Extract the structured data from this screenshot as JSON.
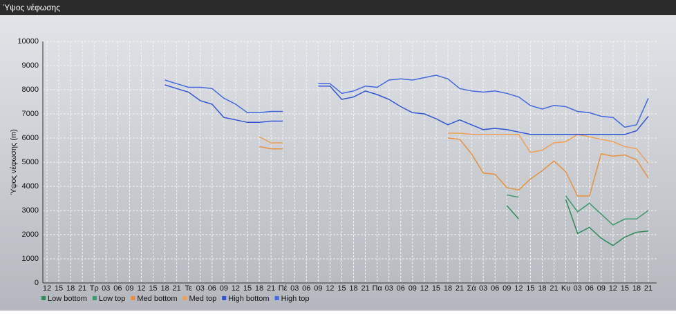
{
  "chart_data": {
    "type": "line",
    "title": "Ύψος νέφωσης",
    "ylabel": "Ύψος νέφωσης (m)",
    "categories": [
      "12",
      "15",
      "18",
      "21",
      "Τρ",
      "03",
      "06",
      "09",
      "12",
      "15",
      "18",
      "21",
      "Τε",
      "03",
      "06",
      "09",
      "12",
      "15",
      "18",
      "21",
      "Πέ",
      "03",
      "06",
      "09",
      "12",
      "15",
      "18",
      "21",
      "Πα",
      "03",
      "06",
      "09",
      "12",
      "15",
      "18",
      "21",
      "Σά",
      "03",
      "06",
      "09",
      "12",
      "15",
      "18",
      "21",
      "Κυ",
      "03",
      "06",
      "09",
      "12",
      "15",
      "18",
      "21"
    ],
    "ylim": [
      0,
      10000
    ],
    "yticks": [
      0,
      1000,
      2000,
      3000,
      4000,
      5000,
      6000,
      7000,
      8000,
      9000,
      10000
    ],
    "grid": true,
    "series": [
      {
        "name": "Low bottom",
        "color": "#2e8b57",
        "values": [
          null,
          null,
          null,
          null,
          null,
          null,
          null,
          null,
          null,
          null,
          null,
          null,
          null,
          null,
          null,
          null,
          null,
          null,
          null,
          null,
          null,
          null,
          null,
          null,
          null,
          null,
          null,
          null,
          null,
          null,
          null,
          null,
          null,
          null,
          null,
          null,
          null,
          null,
          null,
          3200,
          2650,
          null,
          null,
          null,
          3450,
          2050,
          2300,
          1850,
          1550,
          1900,
          2100,
          2150
        ]
      },
      {
        "name": "Low top",
        "color": "#3a9a6a",
        "values": [
          null,
          null,
          null,
          null,
          null,
          null,
          null,
          null,
          null,
          null,
          null,
          null,
          null,
          null,
          null,
          null,
          null,
          null,
          null,
          null,
          null,
          null,
          null,
          null,
          null,
          null,
          null,
          null,
          null,
          null,
          null,
          null,
          null,
          null,
          null,
          null,
          null,
          null,
          null,
          3650,
          3550,
          null,
          null,
          null,
          3600,
          2950,
          3300,
          2850,
          2400,
          2650,
          2650,
          3000
        ]
      },
      {
        "name": "Med bottom",
        "color": "#e8913a",
        "values": [
          null,
          null,
          null,
          null,
          null,
          null,
          null,
          null,
          null,
          null,
          null,
          null,
          null,
          null,
          null,
          null,
          null,
          null,
          5650,
          5550,
          5550,
          null,
          null,
          null,
          null,
          null,
          null,
          null,
          null,
          null,
          null,
          null,
          null,
          null,
          6000,
          5950,
          5350,
          4550,
          4500,
          3950,
          3850,
          4300,
          4650,
          5050,
          4600,
          3600,
          3600,
          5350,
          5250,
          5300,
          5100,
          4350
        ]
      },
      {
        "name": "Med top",
        "color": "#f0a050",
        "values": [
          null,
          null,
          null,
          null,
          null,
          null,
          null,
          null,
          null,
          null,
          null,
          null,
          null,
          null,
          null,
          null,
          null,
          null,
          6050,
          5800,
          5800,
          null,
          null,
          null,
          null,
          null,
          null,
          null,
          null,
          null,
          null,
          null,
          null,
          null,
          6200,
          6200,
          6150,
          6150,
          6150,
          6150,
          6150,
          5400,
          5500,
          5800,
          5850,
          6150,
          6050,
          5950,
          5850,
          5650,
          5550,
          4950
        ]
      },
      {
        "name": "High bottom",
        "color": "#2f55d4",
        "values": [
          null,
          null,
          null,
          null,
          null,
          null,
          null,
          null,
          null,
          null,
          8200,
          8050,
          7900,
          7550,
          7400,
          6850,
          6750,
          6650,
          6650,
          6700,
          6700,
          null,
          null,
          8150,
          8150,
          7600,
          7700,
          7950,
          7800,
          7600,
          7300,
          7050,
          7000,
          6800,
          6550,
          6750,
          6550,
          6350,
          6400,
          6350,
          6250,
          6150,
          6150,
          6150,
          6150,
          6150,
          6150,
          6150,
          6150,
          6150,
          6300,
          6900
        ]
      },
      {
        "name": "High top",
        "color": "#4068e0",
        "values": [
          null,
          null,
          null,
          null,
          null,
          null,
          null,
          null,
          null,
          null,
          8400,
          8250,
          8100,
          8100,
          8050,
          7650,
          7400,
          7050,
          7050,
          7100,
          7100,
          null,
          null,
          8250,
          8250,
          7850,
          7950,
          8150,
          8100,
          8400,
          8450,
          8400,
          8500,
          8600,
          8450,
          8050,
          7950,
          7900,
          7950,
          7850,
          7700,
          7350,
          7200,
          7350,
          7300,
          7100,
          7050,
          6900,
          6850,
          6450,
          6550,
          7650
        ]
      }
    ]
  }
}
